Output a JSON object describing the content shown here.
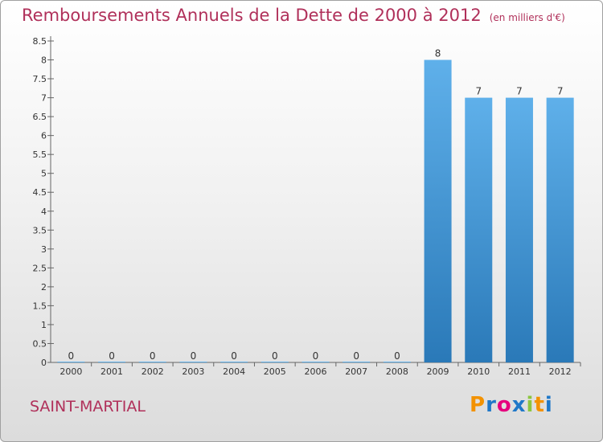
{
  "title": "Remboursements Annuels de la Dette de 2000 à 2012",
  "unit": "(en milliers d'€)",
  "commune": "SAINT-MARTIAL",
  "logo": "Proxiti",
  "colors": {
    "title": "#b0305a",
    "bar_top": "#5fb0ea",
    "bar_bottom": "#2a79b8",
    "logo": [
      "#f39200",
      "#1f78c8",
      "#e6007e",
      "#1f78c8",
      "#8cc63f",
      "#f39200",
      "#1f78c8"
    ]
  },
  "chart_data": {
    "type": "bar",
    "title": "Remboursements Annuels de la Dette de 2000 à 2012",
    "unit": "(en milliers d'€)",
    "categories": [
      "2000",
      "2001",
      "2002",
      "2003",
      "2004",
      "2005",
      "2006",
      "2007",
      "2008",
      "2009",
      "2010",
      "2011",
      "2012"
    ],
    "values": [
      0,
      0,
      0,
      0,
      0,
      0,
      0,
      0,
      0,
      8,
      7,
      7,
      7
    ],
    "data_labels": [
      "0",
      "0",
      "0",
      "0",
      "0",
      "0",
      "0",
      "0",
      "0",
      "8",
      "7",
      "7",
      "7"
    ],
    "ylim": [
      0,
      8.5
    ],
    "yticks": [
      "0",
      "0.5",
      "1",
      "1.5",
      "2",
      "2.5",
      "3",
      "3.5",
      "4",
      "4.5",
      "5",
      "5.5",
      "6",
      "6.5",
      "7",
      "7.5",
      "8",
      "8.5"
    ],
    "grid": false,
    "legend": "none"
  }
}
